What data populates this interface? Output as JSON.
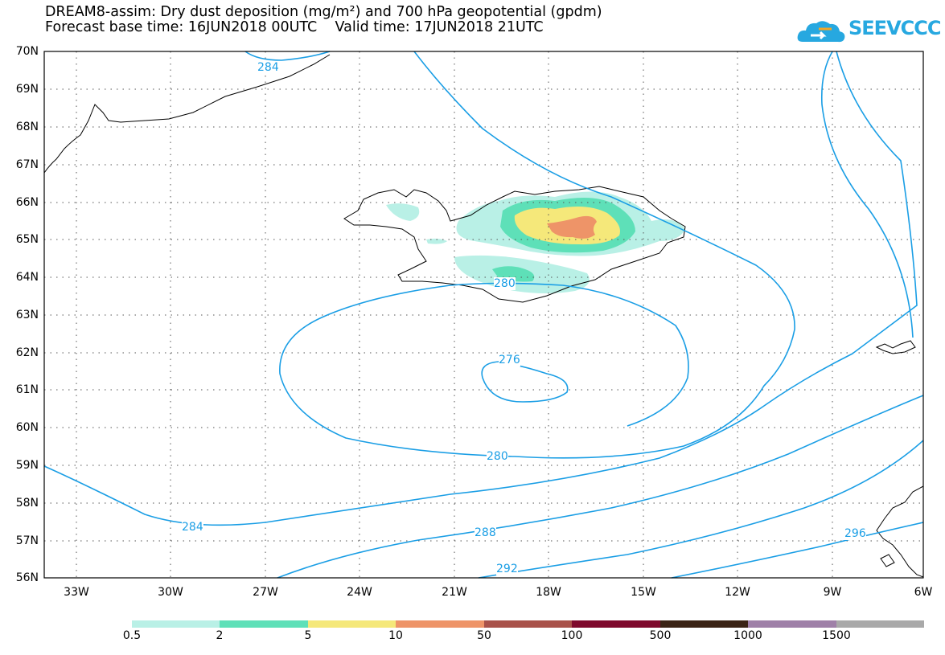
{
  "title_line1": "DREAM8-assim: Dry dust deposition (mg/m²) and 700 hPa geopotential (gpdm)",
  "title_line2": "Forecast base time: 16JUN2018 00UTC    Valid time: 17JUN2018 21UTC",
  "logo_text": "SEEVCCC",
  "lat_labels": [
    "70N",
    "69N",
    "68N",
    "67N",
    "66N",
    "65N",
    "64N",
    "63N",
    "62N",
    "61N",
    "60N",
    "59N",
    "58N",
    "57N",
    "56N"
  ],
  "lon_labels": [
    "33W",
    "30W",
    "27W",
    "24W",
    "21W",
    "18W",
    "15W",
    "12W",
    "9W",
    "6W"
  ],
  "contour_labels": [
    "284",
    "280",
    "276",
    "280",
    "284",
    "288",
    "292",
    "296"
  ],
  "legend": {
    "labels": [
      "0.5",
      "2",
      "5",
      "10",
      "50",
      "100",
      "500",
      "1000",
      "1500"
    ],
    "colors": [
      "#b9f0e6",
      "#5ee0b8",
      "#f5e87a",
      "#ee9468",
      "#a9524a",
      "#7f0a2d",
      "#3b2415",
      "#9f80a8",
      "#a9a9a9"
    ]
  },
  "colors": {
    "contour": "#1a9ee5",
    "coast": "#000000"
  }
}
